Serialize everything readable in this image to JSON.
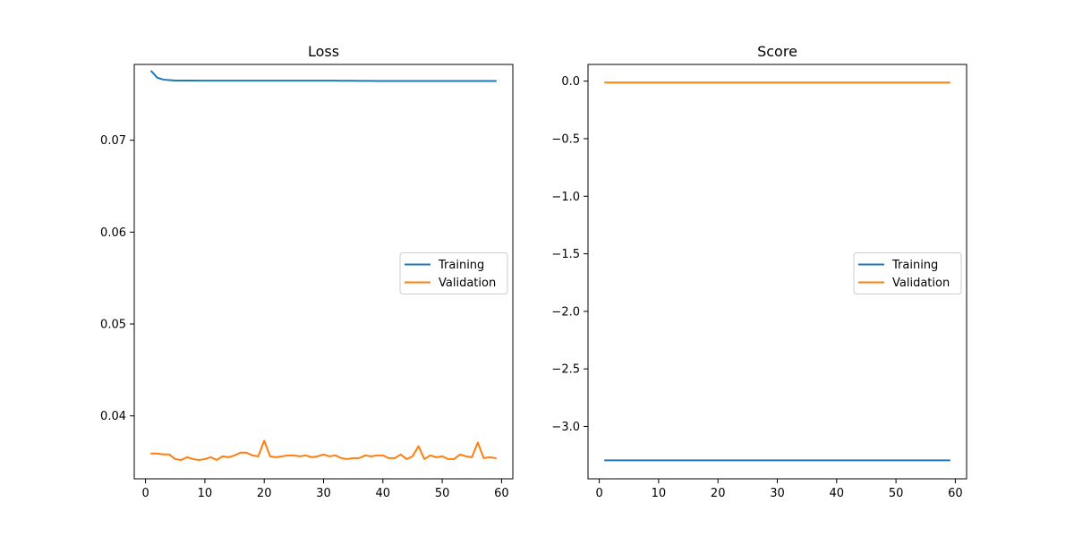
{
  "chart_data": [
    {
      "type": "line",
      "title": "Loss",
      "xlabel": "",
      "ylabel": "",
      "xlim": [
        -1.9,
        61.9
      ],
      "ylim": [
        0.03315,
        0.07825
      ],
      "xticks": [
        0,
        10,
        20,
        30,
        40,
        50,
        60
      ],
      "xtick_labels": [
        "0",
        "10",
        "20",
        "30",
        "40",
        "50",
        "60"
      ],
      "yticks": [
        0.04,
        0.05,
        0.06,
        0.07
      ],
      "ytick_labels": [
        "0.04",
        "0.05",
        "0.06",
        "0.07"
      ],
      "grid": false,
      "legend": "center-right",
      "x": [
        1,
        2,
        3,
        4,
        5,
        6,
        7,
        8,
        9,
        10,
        11,
        12,
        13,
        14,
        15,
        16,
        17,
        18,
        19,
        20,
        21,
        22,
        23,
        24,
        25,
        26,
        27,
        28,
        29,
        30,
        31,
        32,
        33,
        34,
        35,
        36,
        37,
        38,
        39,
        40,
        41,
        42,
        43,
        44,
        45,
        46,
        47,
        48,
        49,
        50,
        51,
        52,
        53,
        54,
        55,
        56,
        57,
        58,
        59
      ],
      "series": [
        {
          "name": "Training",
          "color": "#1f77b4",
          "values": [
            0.0775,
            0.0768,
            0.0766,
            0.07655,
            0.0765,
            0.0765,
            0.0765,
            0.0765,
            0.07648,
            0.07648,
            0.07648,
            0.07648,
            0.07648,
            0.07648,
            0.07648,
            0.07648,
            0.07648,
            0.07648,
            0.07648,
            0.07648,
            0.07648,
            0.07648,
            0.07648,
            0.07648,
            0.07648,
            0.07648,
            0.07648,
            0.07648,
            0.07648,
            0.07648,
            0.07648,
            0.07648,
            0.07647,
            0.07647,
            0.07647,
            0.07646,
            0.07646,
            0.07646,
            0.07645,
            0.07645,
            0.07645,
            0.07645,
            0.07645,
            0.07645,
            0.07645,
            0.07645,
            0.07645,
            0.07645,
            0.07645,
            0.07645,
            0.07645,
            0.07645,
            0.07645,
            0.07645,
            0.07645,
            0.07645,
            0.07645,
            0.07645,
            0.07645
          ]
        },
        {
          "name": "Validation",
          "color": "#ff7f0e",
          "values": [
            0.0359,
            0.0359,
            0.0358,
            0.0358,
            0.0353,
            0.0352,
            0.0355,
            0.0353,
            0.0352,
            0.0353,
            0.0355,
            0.0352,
            0.0356,
            0.0355,
            0.0357,
            0.036,
            0.036,
            0.0357,
            0.0356,
            0.0373,
            0.0356,
            0.0355,
            0.0356,
            0.0357,
            0.0357,
            0.0356,
            0.0357,
            0.0355,
            0.0356,
            0.0358,
            0.0356,
            0.0357,
            0.0354,
            0.0353,
            0.0354,
            0.0354,
            0.0357,
            0.0356,
            0.0357,
            0.0357,
            0.0354,
            0.0354,
            0.0358,
            0.0353,
            0.0356,
            0.0367,
            0.0353,
            0.0357,
            0.0355,
            0.0356,
            0.0353,
            0.0353,
            0.0358,
            0.0356,
            0.0355,
            0.0371,
            0.0354,
            0.0355,
            0.0354
          ]
        }
      ]
    },
    {
      "type": "line",
      "title": "Score",
      "xlabel": "",
      "ylabel": "",
      "xlim": [
        -1.9,
        61.9
      ],
      "ylim": [
        -3.455,
        0.145
      ],
      "xticks": [
        0,
        10,
        20,
        30,
        40,
        50,
        60
      ],
      "xtick_labels": [
        "0",
        "10",
        "20",
        "30",
        "40",
        "50",
        "60"
      ],
      "yticks": [
        0.0,
        -0.5,
        -1.0,
        -1.5,
        -2.0,
        -2.5,
        -3.0
      ],
      "ytick_labels": [
        "0.0",
        "−0.5",
        "−1.0",
        "−1.5",
        "−2.0",
        "−2.5",
        "−3.0"
      ],
      "grid": false,
      "legend": "center-right",
      "x": [
        1,
        2,
        3,
        4,
        5,
        6,
        7,
        8,
        9,
        10,
        11,
        12,
        13,
        14,
        15,
        16,
        17,
        18,
        19,
        20,
        21,
        22,
        23,
        24,
        25,
        26,
        27,
        28,
        29,
        30,
        31,
        32,
        33,
        34,
        35,
        36,
        37,
        38,
        39,
        40,
        41,
        42,
        43,
        44,
        45,
        46,
        47,
        48,
        49,
        50,
        51,
        52,
        53,
        54,
        55,
        56,
        57,
        58,
        59
      ],
      "series": [
        {
          "name": "Training",
          "color": "#1f77b4",
          "values": [
            -3.295,
            -3.295,
            -3.295,
            -3.295,
            -3.295,
            -3.295,
            -3.295,
            -3.295,
            -3.295,
            -3.295,
            -3.295,
            -3.295,
            -3.295,
            -3.295,
            -3.295,
            -3.295,
            -3.295,
            -3.295,
            -3.295,
            -3.295,
            -3.295,
            -3.295,
            -3.295,
            -3.295,
            -3.295,
            -3.295,
            -3.295,
            -3.295,
            -3.295,
            -3.295,
            -3.295,
            -3.295,
            -3.295,
            -3.295,
            -3.295,
            -3.295,
            -3.295,
            -3.295,
            -3.295,
            -3.295,
            -3.295,
            -3.295,
            -3.295,
            -3.295,
            -3.295,
            -3.295,
            -3.295,
            -3.295,
            -3.295,
            -3.295,
            -3.295,
            -3.295,
            -3.295,
            -3.295,
            -3.295,
            -3.295,
            -3.295,
            -3.295,
            -3.295
          ]
        },
        {
          "name": "Validation",
          "color": "#ff7f0e",
          "values": [
            -0.012,
            -0.012,
            -0.012,
            -0.012,
            -0.012,
            -0.012,
            -0.012,
            -0.012,
            -0.012,
            -0.012,
            -0.012,
            -0.012,
            -0.012,
            -0.012,
            -0.012,
            -0.012,
            -0.012,
            -0.012,
            -0.012,
            -0.012,
            -0.012,
            -0.012,
            -0.012,
            -0.012,
            -0.012,
            -0.012,
            -0.012,
            -0.012,
            -0.012,
            -0.012,
            -0.012,
            -0.012,
            -0.012,
            -0.012,
            -0.012,
            -0.012,
            -0.012,
            -0.012,
            -0.012,
            -0.012,
            -0.012,
            -0.012,
            -0.012,
            -0.012,
            -0.012,
            -0.012,
            -0.012,
            -0.012,
            -0.012,
            -0.012,
            -0.012,
            -0.012,
            -0.012,
            -0.012,
            -0.012,
            -0.012,
            -0.012,
            -0.012,
            -0.012
          ]
        }
      ]
    }
  ]
}
